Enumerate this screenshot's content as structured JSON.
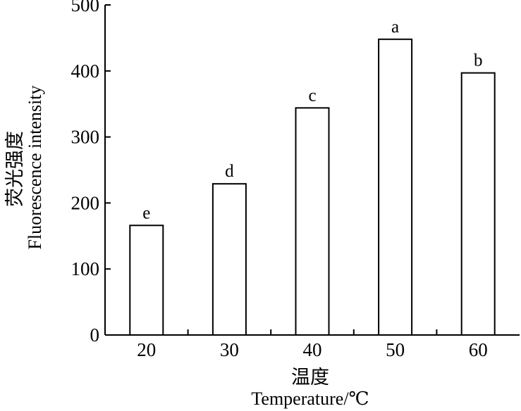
{
  "chart_data": {
    "type": "bar",
    "categories": [
      "20",
      "30",
      "40",
      "50",
      "60"
    ],
    "values": [
      166,
      229,
      344,
      448,
      397
    ],
    "significance_labels": [
      "e",
      "d",
      "c",
      "a",
      "b"
    ],
    "ylim": [
      0,
      500
    ],
    "yticks": [
      0,
      100,
      200,
      300,
      400,
      500
    ],
    "xlabel_cn": "温度",
    "xlabel": "Temperature/℃",
    "ylabel_cn": "荧光强度",
    "ylabel": "Fluorescence intensity",
    "grid": false,
    "bar_fill": "#ffffff",
    "bar_stroke": "#000000"
  }
}
